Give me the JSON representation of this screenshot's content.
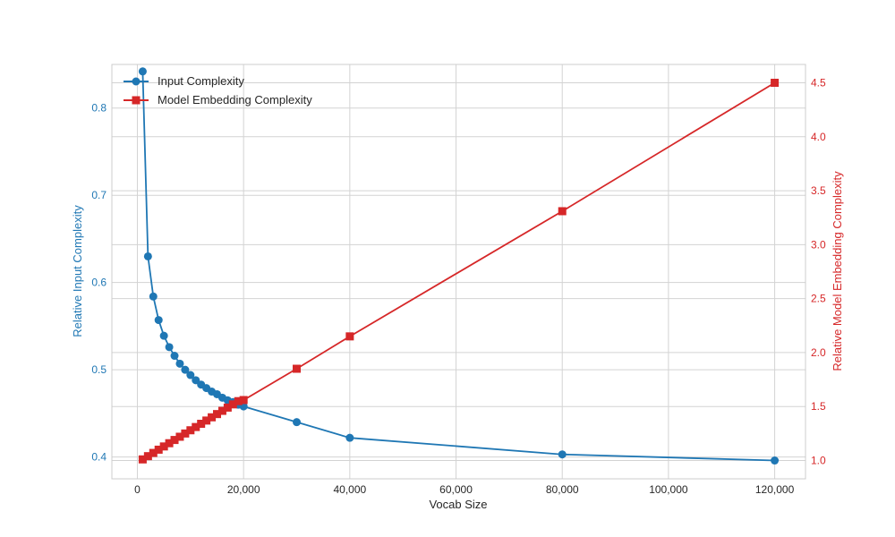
{
  "chart_data": {
    "type": "line",
    "xlabel": "Vocab Size",
    "ylabel_left": "Relative Input Complexity",
    "ylabel_right": "Relative Model Embedding Complexity",
    "xlim": [
      -4800,
      125800
    ],
    "ylim_left": [
      0.375,
      0.85
    ],
    "ylim_right": [
      0.83,
      4.67
    ],
    "x_ticks": [
      0,
      20000,
      40000,
      60000,
      80000,
      100000,
      120000
    ],
    "x_tick_labels": [
      "0",
      "20,000",
      "40,000",
      "60,000",
      "80,000",
      "100,000",
      "120,000"
    ],
    "y_left_ticks": [
      0.4,
      0.5,
      0.6,
      0.7,
      0.8
    ],
    "y_left_tick_labels": [
      "0.4",
      "0.5",
      "0.6",
      "0.7",
      "0.8"
    ],
    "y_right_ticks": [
      1.0,
      1.5,
      2.0,
      2.5,
      3.0,
      3.5,
      4.0,
      4.5
    ],
    "y_right_tick_labels": [
      "1.0",
      "1.5",
      "2.0",
      "2.5",
      "3.0",
      "3.5",
      "4.0",
      "4.5"
    ],
    "grid": true,
    "legend_position": "top-left",
    "series": [
      {
        "name": "Input Complexity",
        "axis": "left",
        "color": "#1f77b4",
        "marker": "circle",
        "x": [
          1000,
          2000,
          3000,
          4000,
          5000,
          6000,
          7000,
          8000,
          9000,
          10000,
          11000,
          12000,
          13000,
          14000,
          15000,
          16000,
          17000,
          18000,
          19000,
          20000,
          30000,
          40000,
          80000,
          120000
        ],
        "y": [
          0.842,
          0.63,
          0.584,
          0.557,
          0.539,
          0.526,
          0.516,
          0.507,
          0.5,
          0.494,
          0.488,
          0.483,
          0.479,
          0.475,
          0.472,
          0.468,
          0.465,
          0.463,
          0.46,
          0.458,
          0.44,
          0.422,
          0.403,
          0.396
        ]
      },
      {
        "name": "Model Embedding Complexity",
        "axis": "right",
        "color": "#d62728",
        "marker": "square",
        "x": [
          1000,
          2000,
          3000,
          4000,
          5000,
          6000,
          7000,
          8000,
          9000,
          10000,
          11000,
          12000,
          13000,
          14000,
          15000,
          16000,
          17000,
          18000,
          19000,
          20000,
          30000,
          40000,
          80000,
          120000
        ],
        "y": [
          1.01,
          1.04,
          1.07,
          1.1,
          1.13,
          1.16,
          1.19,
          1.22,
          1.25,
          1.28,
          1.31,
          1.34,
          1.37,
          1.4,
          1.43,
          1.46,
          1.49,
          1.52,
          1.55,
          1.56,
          1.85,
          2.15,
          3.31,
          4.5
        ]
      }
    ]
  }
}
